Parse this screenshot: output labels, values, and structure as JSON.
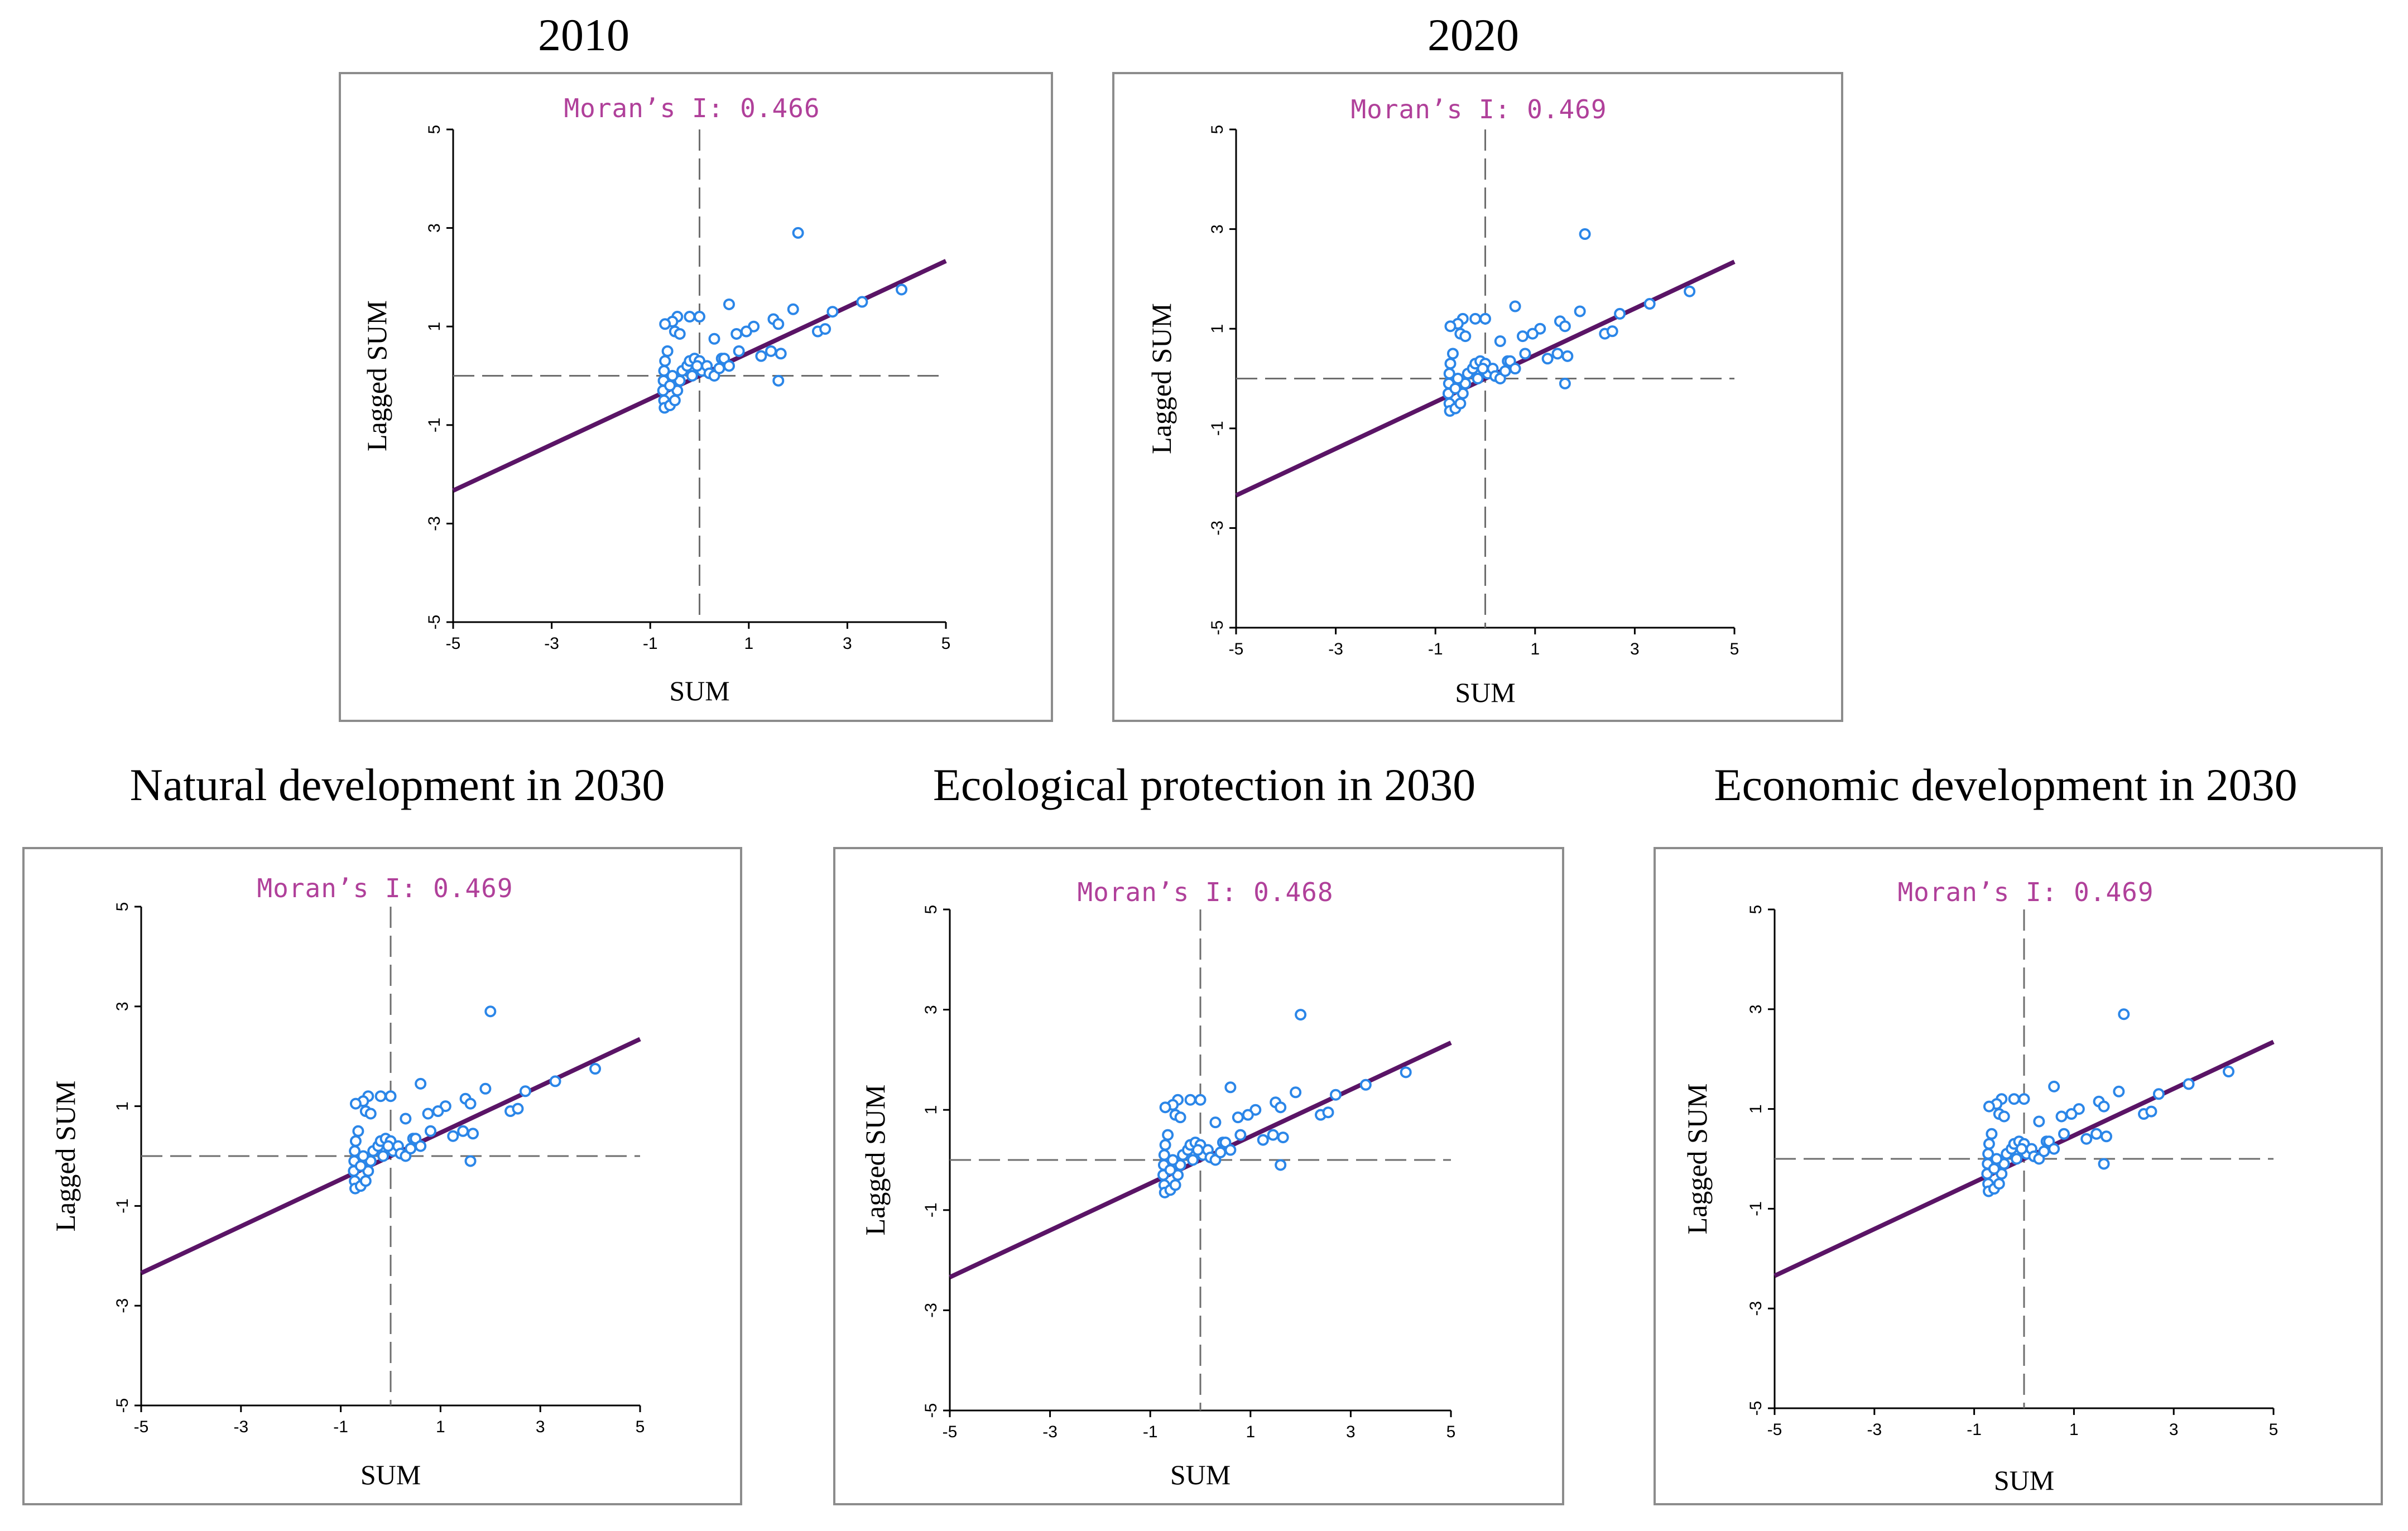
{
  "panels": [
    {
      "title": "2010",
      "moran_label": "Moran’s I: 0.466"
    },
    {
      "title": "2020",
      "moran_label": "Moran’s I: 0.469"
    },
    {
      "title": "Natural development in 2030",
      "moran_label": "Moran’s I: 0.469"
    },
    {
      "title": "Ecological protection in 2030",
      "moran_label": "Moran’s I: 0.468"
    },
    {
      "title": "Economic development in 2030",
      "moran_label": "Moran’s I: 0.469"
    }
  ],
  "colors": {
    "points": "#2b86e8",
    "regression_line": "#5a1466",
    "reference_lines": "#6e6e6e",
    "moran_text": "#b0409a",
    "frame": "#8c8c8c"
  },
  "chart_data": [
    {
      "type": "scatter",
      "title": "2010",
      "annotation": "Moran’s I: 0.466",
      "slope": 0.466,
      "xlabel": "SUM",
      "ylabel": "Lagged SUM",
      "xlim": [
        -5,
        5
      ],
      "ylim": [
        -5,
        5
      ],
      "xticks": [
        "-5",
        "-3",
        "-1",
        "1",
        "3",
        "5"
      ],
      "yticks": [
        "5",
        "3",
        "1",
        "-1",
        "-3",
        "-5"
      ],
      "reference_lines": {
        "x": 0,
        "y": 0
      },
      "points": [
        [
          2.0,
          2.9
        ],
        [
          4.1,
          1.75
        ],
        [
          3.3,
          1.5
        ],
        [
          2.7,
          1.3
        ],
        [
          1.9,
          1.35
        ],
        [
          1.5,
          1.15
        ],
        [
          1.6,
          1.05
        ],
        [
          1.1,
          1.0
        ],
        [
          0.95,
          0.9
        ],
        [
          0.75,
          0.85
        ],
        [
          0.6,
          1.45
        ],
        [
          2.4,
          0.9
        ],
        [
          2.55,
          0.95
        ],
        [
          1.25,
          0.4
        ],
        [
          1.45,
          0.5
        ],
        [
          1.65,
          0.45
        ],
        [
          1.6,
          -0.1
        ],
        [
          0.8,
          0.5
        ],
        [
          0.45,
          0.35
        ],
        [
          0.3,
          0.75
        ],
        [
          0.0,
          1.2
        ],
        [
          -0.2,
          1.2
        ],
        [
          -0.45,
          1.2
        ],
        [
          -0.55,
          1.1
        ],
        [
          -0.7,
          1.05
        ],
        [
          -0.5,
          0.9
        ],
        [
          -0.4,
          0.85
        ],
        [
          -0.65,
          0.5
        ],
        [
          -0.7,
          0.3
        ],
        [
          -0.72,
          0.1
        ],
        [
          -0.73,
          -0.1
        ],
        [
          -0.74,
          -0.3
        ],
        [
          -0.72,
          -0.5
        ],
        [
          -0.71,
          -0.65
        ],
        [
          -0.6,
          -0.6
        ],
        [
          -0.5,
          -0.5
        ],
        [
          -0.45,
          -0.3
        ],
        [
          -0.4,
          -0.1
        ],
        [
          -0.35,
          0.1
        ],
        [
          -0.25,
          0.2
        ],
        [
          -0.2,
          0.3
        ],
        [
          -0.1,
          0.35
        ],
        [
          0.0,
          0.3
        ],
        [
          0.05,
          0.1
        ],
        [
          0.15,
          0.2
        ],
        [
          0.2,
          0.05
        ],
        [
          0.3,
          0.0
        ],
        [
          0.4,
          0.15
        ],
        [
          0.5,
          0.35
        ],
        [
          0.6,
          0.2
        ],
        [
          -0.55,
          0.0
        ],
        [
          -0.6,
          -0.2
        ],
        [
          -0.15,
          0.0
        ],
        [
          -0.05,
          0.2
        ]
      ]
    },
    {
      "type": "scatter",
      "title": "2020",
      "annotation": "Moran’s I: 0.469",
      "slope": 0.469,
      "xlabel": "SUM",
      "ylabel": "Lagged SUM",
      "xlim": [
        -5,
        5
      ],
      "ylim": [
        -5,
        5
      ],
      "xticks": [
        "-5",
        "-3",
        "-1",
        "1",
        "3",
        "5"
      ],
      "yticks": [
        "5",
        "3",
        "1",
        "-1",
        "-3",
        "-5"
      ],
      "reference_lines": {
        "x": 0,
        "y": 0
      },
      "points": [
        [
          2.0,
          2.9
        ],
        [
          4.1,
          1.75
        ],
        [
          3.3,
          1.5
        ],
        [
          2.7,
          1.3
        ],
        [
          1.9,
          1.35
        ],
        [
          1.5,
          1.15
        ],
        [
          1.6,
          1.05
        ],
        [
          1.1,
          1.0
        ],
        [
          0.95,
          0.9
        ],
        [
          0.75,
          0.85
        ],
        [
          0.6,
          1.45
        ],
        [
          2.4,
          0.9
        ],
        [
          2.55,
          0.95
        ],
        [
          1.25,
          0.4
        ],
        [
          1.45,
          0.5
        ],
        [
          1.65,
          0.45
        ],
        [
          1.6,
          -0.1
        ],
        [
          0.8,
          0.5
        ],
        [
          0.45,
          0.35
        ],
        [
          0.3,
          0.75
        ],
        [
          0.0,
          1.2
        ],
        [
          -0.2,
          1.2
        ],
        [
          -0.45,
          1.2
        ],
        [
          -0.55,
          1.1
        ],
        [
          -0.7,
          1.05
        ],
        [
          -0.5,
          0.9
        ],
        [
          -0.4,
          0.85
        ],
        [
          -0.65,
          0.5
        ],
        [
          -0.7,
          0.3
        ],
        [
          -0.72,
          0.1
        ],
        [
          -0.73,
          -0.1
        ],
        [
          -0.74,
          -0.3
        ],
        [
          -0.72,
          -0.5
        ],
        [
          -0.71,
          -0.65
        ],
        [
          -0.6,
          -0.6
        ],
        [
          -0.5,
          -0.5
        ],
        [
          -0.45,
          -0.3
        ],
        [
          -0.4,
          -0.1
        ],
        [
          -0.35,
          0.1
        ],
        [
          -0.25,
          0.2
        ],
        [
          -0.2,
          0.3
        ],
        [
          -0.1,
          0.35
        ],
        [
          0.0,
          0.3
        ],
        [
          0.05,
          0.1
        ],
        [
          0.15,
          0.2
        ],
        [
          0.2,
          0.05
        ],
        [
          0.3,
          0.0
        ],
        [
          0.4,
          0.15
        ],
        [
          0.5,
          0.35
        ],
        [
          0.6,
          0.2
        ],
        [
          -0.55,
          0.0
        ],
        [
          -0.6,
          -0.2
        ],
        [
          -0.15,
          0.0
        ],
        [
          -0.05,
          0.2
        ]
      ]
    },
    {
      "type": "scatter",
      "title": "Natural development in 2030",
      "annotation": "Moran’s I: 0.469",
      "slope": 0.469,
      "xlabel": "SUM",
      "ylabel": "Lagged SUM",
      "xlim": [
        -5,
        5
      ],
      "ylim": [
        -5,
        5
      ],
      "xticks": [
        "-5",
        "-3",
        "-1",
        "1",
        "3",
        "5"
      ],
      "yticks": [
        "5",
        "3",
        "1",
        "-1",
        "-3",
        "-5"
      ],
      "reference_lines": {
        "x": 0,
        "y": 0
      },
      "points": [
        [
          2.0,
          2.9
        ],
        [
          4.1,
          1.75
        ],
        [
          3.3,
          1.5
        ],
        [
          2.7,
          1.3
        ],
        [
          1.9,
          1.35
        ],
        [
          1.5,
          1.15
        ],
        [
          1.6,
          1.05
        ],
        [
          1.1,
          1.0
        ],
        [
          0.95,
          0.9
        ],
        [
          0.75,
          0.85
        ],
        [
          0.6,
          1.45
        ],
        [
          2.4,
          0.9
        ],
        [
          2.55,
          0.95
        ],
        [
          1.25,
          0.4
        ],
        [
          1.45,
          0.5
        ],
        [
          1.65,
          0.45
        ],
        [
          1.6,
          -0.1
        ],
        [
          0.8,
          0.5
        ],
        [
          0.45,
          0.35
        ],
        [
          0.3,
          0.75
        ],
        [
          0.0,
          1.2
        ],
        [
          -0.2,
          1.2
        ],
        [
          -0.45,
          1.2
        ],
        [
          -0.55,
          1.1
        ],
        [
          -0.7,
          1.05
        ],
        [
          -0.5,
          0.9
        ],
        [
          -0.4,
          0.85
        ],
        [
          -0.65,
          0.5
        ],
        [
          -0.7,
          0.3
        ],
        [
          -0.72,
          0.1
        ],
        [
          -0.73,
          -0.1
        ],
        [
          -0.74,
          -0.3
        ],
        [
          -0.72,
          -0.5
        ],
        [
          -0.71,
          -0.65
        ],
        [
          -0.6,
          -0.6
        ],
        [
          -0.5,
          -0.5
        ],
        [
          -0.45,
          -0.3
        ],
        [
          -0.4,
          -0.1
        ],
        [
          -0.35,
          0.1
        ],
        [
          -0.25,
          0.2
        ],
        [
          -0.2,
          0.3
        ],
        [
          -0.1,
          0.35
        ],
        [
          0.0,
          0.3
        ],
        [
          0.05,
          0.1
        ],
        [
          0.15,
          0.2
        ],
        [
          0.2,
          0.05
        ],
        [
          0.3,
          0.0
        ],
        [
          0.4,
          0.15
        ],
        [
          0.5,
          0.35
        ],
        [
          0.6,
          0.2
        ],
        [
          -0.55,
          0.0
        ],
        [
          -0.6,
          -0.2
        ],
        [
          -0.15,
          0.0
        ],
        [
          -0.05,
          0.2
        ]
      ]
    },
    {
      "type": "scatter",
      "title": "Ecological protection in 2030",
      "annotation": "Moran’s I: 0.468",
      "slope": 0.468,
      "xlabel": "SUM",
      "ylabel": "Lagged SUM",
      "xlim": [
        -5,
        5
      ],
      "ylim": [
        -5,
        5
      ],
      "xticks": [
        "-5",
        "-3",
        "-1",
        "1",
        "3",
        "5"
      ],
      "yticks": [
        "5",
        "3",
        "1",
        "-1",
        "-3",
        "-5"
      ],
      "reference_lines": {
        "x": 0,
        "y": 0
      },
      "points": [
        [
          2.0,
          2.9
        ],
        [
          4.1,
          1.75
        ],
        [
          3.3,
          1.5
        ],
        [
          2.7,
          1.3
        ],
        [
          1.9,
          1.35
        ],
        [
          1.5,
          1.15
        ],
        [
          1.6,
          1.05
        ],
        [
          1.1,
          1.0
        ],
        [
          0.95,
          0.9
        ],
        [
          0.75,
          0.85
        ],
        [
          0.6,
          1.45
        ],
        [
          2.4,
          0.9
        ],
        [
          2.55,
          0.95
        ],
        [
          1.25,
          0.4
        ],
        [
          1.45,
          0.5
        ],
        [
          1.65,
          0.45
        ],
        [
          1.6,
          -0.1
        ],
        [
          0.8,
          0.5
        ],
        [
          0.45,
          0.35
        ],
        [
          0.3,
          0.75
        ],
        [
          0.0,
          1.2
        ],
        [
          -0.2,
          1.2
        ],
        [
          -0.45,
          1.2
        ],
        [
          -0.55,
          1.1
        ],
        [
          -0.7,
          1.05
        ],
        [
          -0.5,
          0.9
        ],
        [
          -0.4,
          0.85
        ],
        [
          -0.65,
          0.5
        ],
        [
          -0.7,
          0.3
        ],
        [
          -0.72,
          0.1
        ],
        [
          -0.73,
          -0.1
        ],
        [
          -0.74,
          -0.3
        ],
        [
          -0.72,
          -0.5
        ],
        [
          -0.71,
          -0.65
        ],
        [
          -0.6,
          -0.6
        ],
        [
          -0.5,
          -0.5
        ],
        [
          -0.45,
          -0.3
        ],
        [
          -0.4,
          -0.1
        ],
        [
          -0.35,
          0.1
        ],
        [
          -0.25,
          0.2
        ],
        [
          -0.2,
          0.3
        ],
        [
          -0.1,
          0.35
        ],
        [
          0.0,
          0.3
        ],
        [
          0.05,
          0.1
        ],
        [
          0.15,
          0.2
        ],
        [
          0.2,
          0.05
        ],
        [
          0.3,
          0.0
        ],
        [
          0.4,
          0.15
        ],
        [
          0.5,
          0.35
        ],
        [
          0.6,
          0.2
        ],
        [
          -0.55,
          0.0
        ],
        [
          -0.6,
          -0.2
        ],
        [
          -0.15,
          0.0
        ],
        [
          -0.05,
          0.2
        ]
      ]
    },
    {
      "type": "scatter",
      "title": "Economic development in 2030",
      "annotation": "Moran’s I: 0.469",
      "slope": 0.469,
      "xlabel": "SUM",
      "ylabel": "Lagged SUM",
      "xlim": [
        -5,
        5
      ],
      "ylim": [
        -5,
        5
      ],
      "xticks": [
        "-5",
        "-3",
        "-1",
        "1",
        "3",
        "5"
      ],
      "yticks": [
        "5",
        "3",
        "1",
        "-1",
        "-3",
        "-5"
      ],
      "reference_lines": {
        "x": 0,
        "y": 0
      },
      "points": [
        [
          2.0,
          2.9
        ],
        [
          4.1,
          1.75
        ],
        [
          3.3,
          1.5
        ],
        [
          2.7,
          1.3
        ],
        [
          1.9,
          1.35
        ],
        [
          1.5,
          1.15
        ],
        [
          1.6,
          1.05
        ],
        [
          1.1,
          1.0
        ],
        [
          0.95,
          0.9
        ],
        [
          0.75,
          0.85
        ],
        [
          0.6,
          1.45
        ],
        [
          2.4,
          0.9
        ],
        [
          2.55,
          0.95
        ],
        [
          1.25,
          0.4
        ],
        [
          1.45,
          0.5
        ],
        [
          1.65,
          0.45
        ],
        [
          1.6,
          -0.1
        ],
        [
          0.8,
          0.5
        ],
        [
          0.45,
          0.35
        ],
        [
          0.3,
          0.75
        ],
        [
          0.0,
          1.2
        ],
        [
          -0.2,
          1.2
        ],
        [
          -0.45,
          1.2
        ],
        [
          -0.55,
          1.1
        ],
        [
          -0.7,
          1.05
        ],
        [
          -0.5,
          0.9
        ],
        [
          -0.4,
          0.85
        ],
        [
          -0.65,
          0.5
        ],
        [
          -0.7,
          0.3
        ],
        [
          -0.72,
          0.1
        ],
        [
          -0.73,
          -0.1
        ],
        [
          -0.74,
          -0.3
        ],
        [
          -0.72,
          -0.5
        ],
        [
          -0.71,
          -0.65
        ],
        [
          -0.6,
          -0.6
        ],
        [
          -0.5,
          -0.5
        ],
        [
          -0.45,
          -0.3
        ],
        [
          -0.4,
          -0.1
        ],
        [
          -0.35,
          0.1
        ],
        [
          -0.25,
          0.2
        ],
        [
          -0.2,
          0.3
        ],
        [
          -0.1,
          0.35
        ],
        [
          0.0,
          0.3
        ],
        [
          0.05,
          0.1
        ],
        [
          0.15,
          0.2
        ],
        [
          0.2,
          0.05
        ],
        [
          0.3,
          0.0
        ],
        [
          0.4,
          0.15
        ],
        [
          0.5,
          0.35
        ],
        [
          0.6,
          0.2
        ],
        [
          -0.55,
          0.0
        ],
        [
          -0.6,
          -0.2
        ],
        [
          -0.15,
          0.0
        ],
        [
          -0.05,
          0.2
        ]
      ]
    }
  ]
}
